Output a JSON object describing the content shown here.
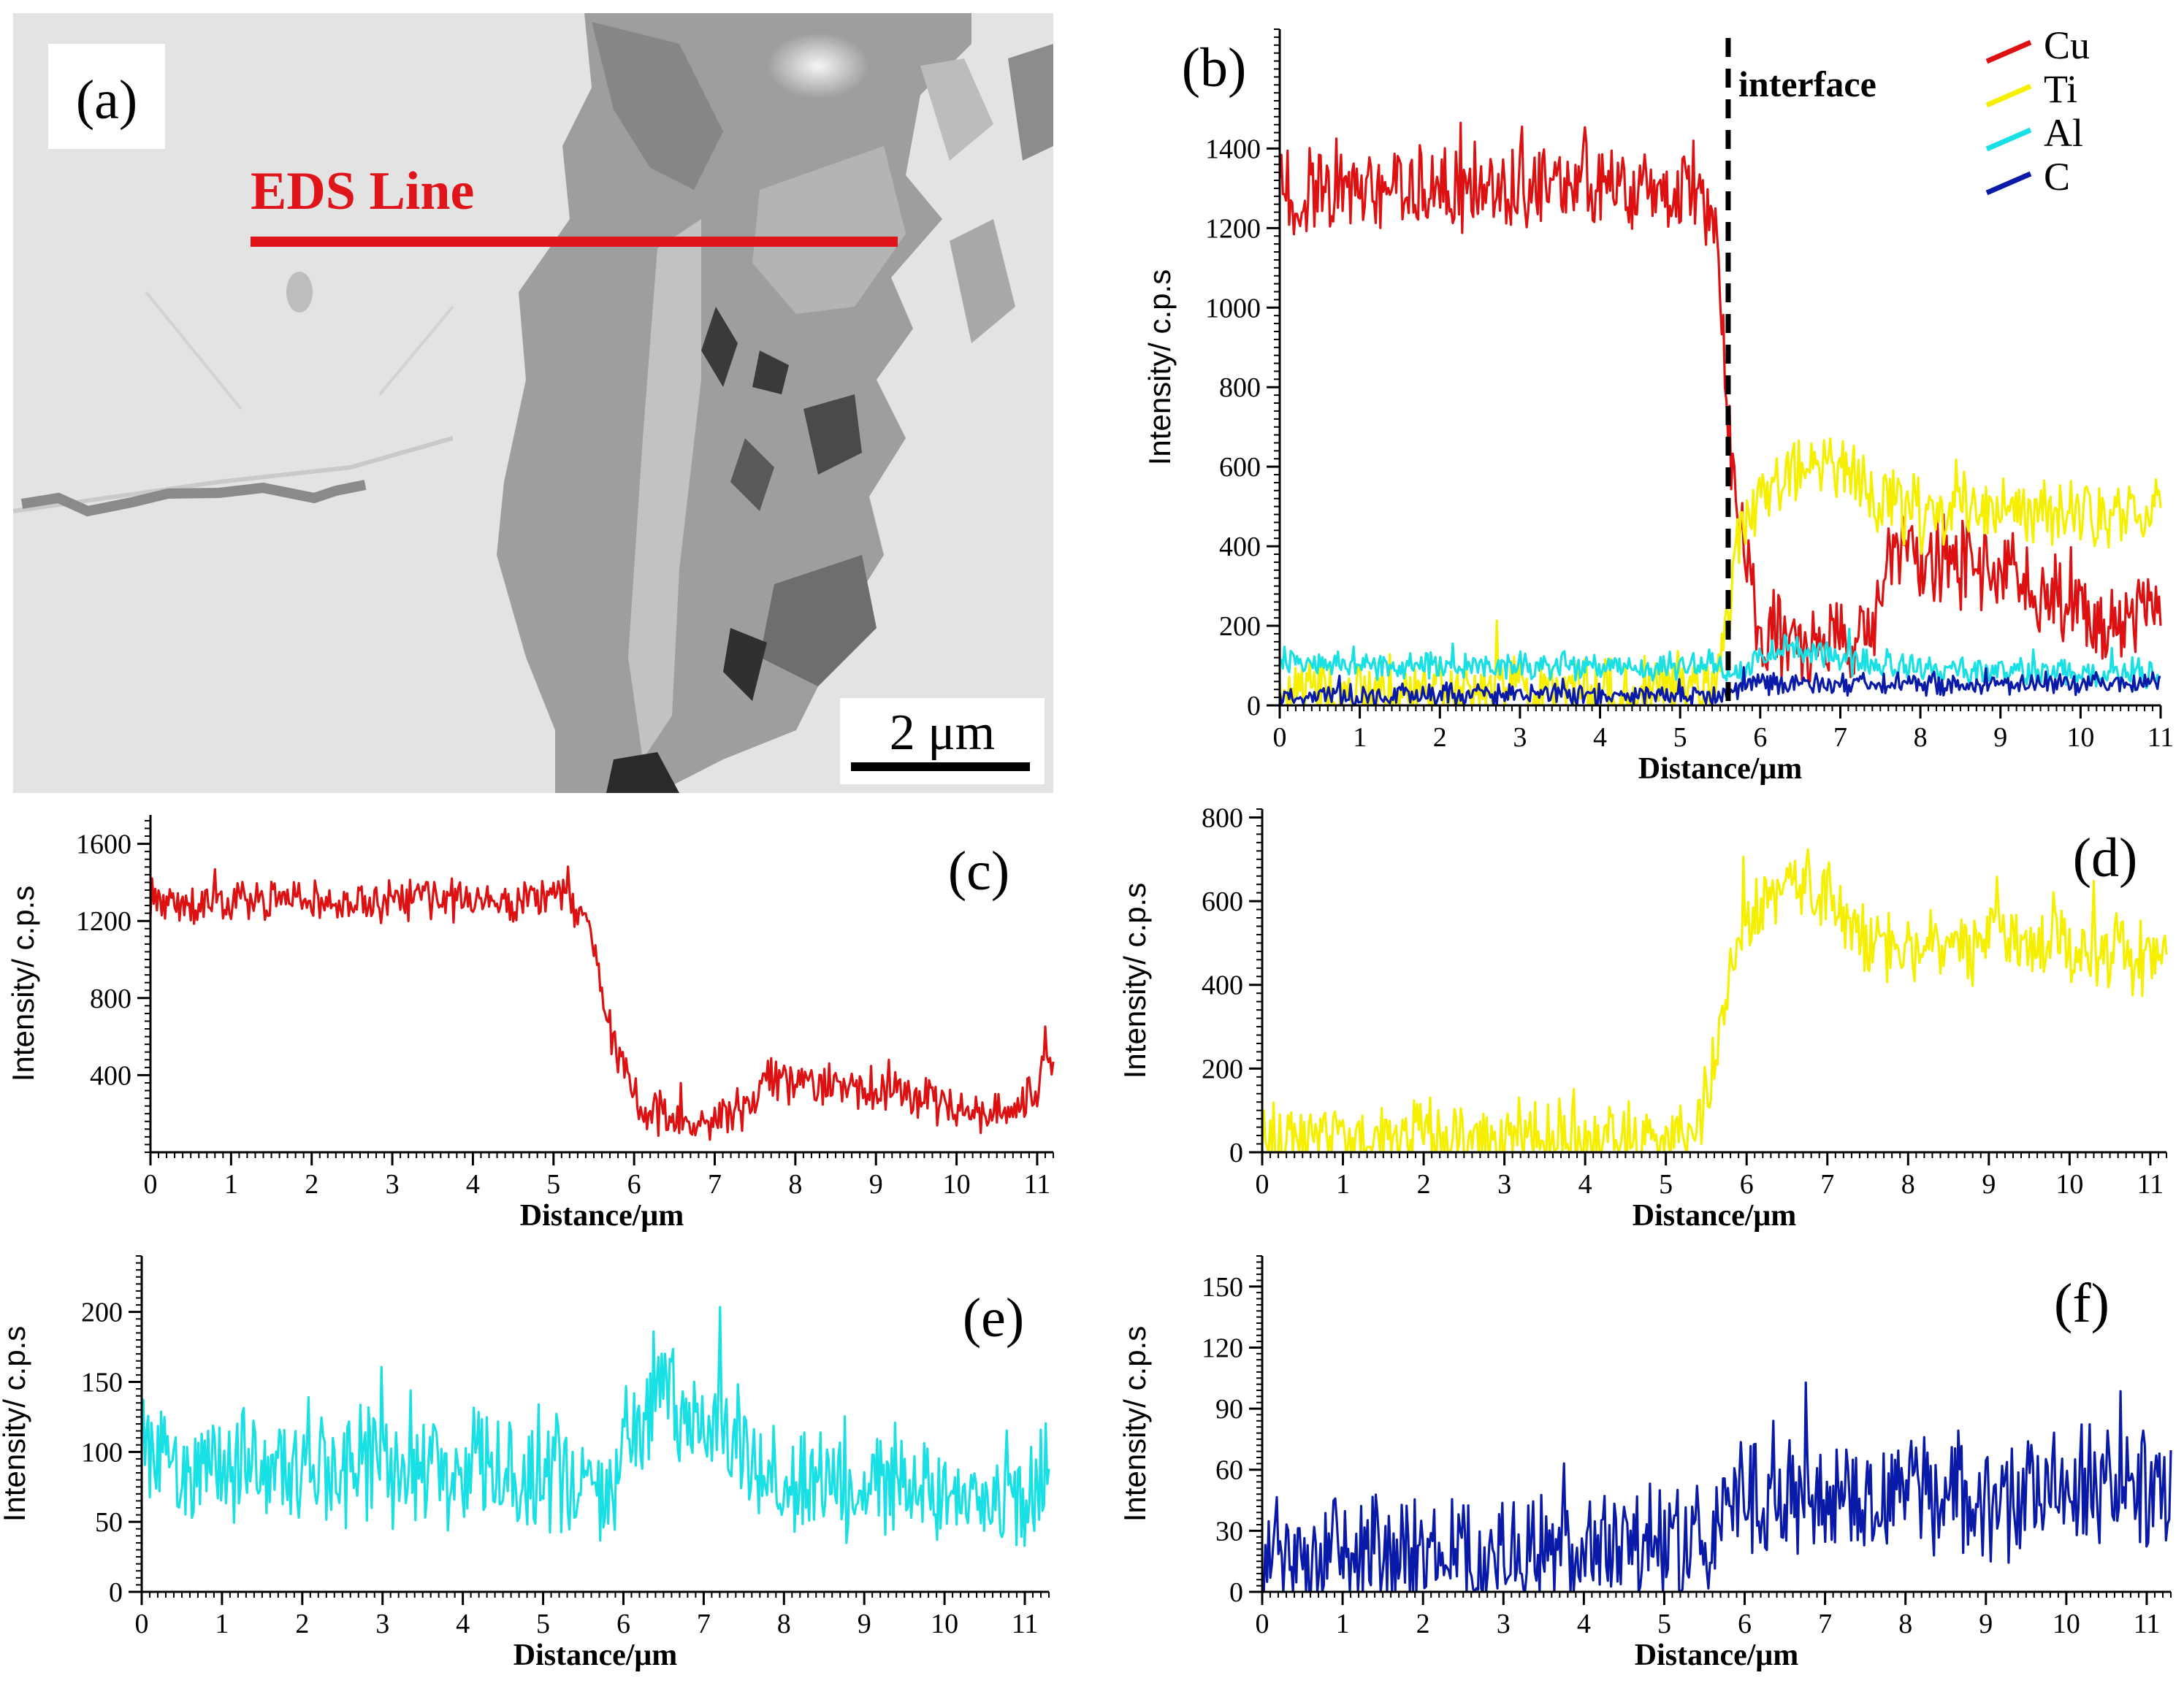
{
  "figure": {
    "panel_a": {
      "letter": "(a)",
      "eds_label": "EDS Line",
      "scale_bar_label": "2 μm",
      "line_color": "#e0151b"
    }
  },
  "chart_data": [
    {
      "id": "b",
      "letter": "(b)",
      "type": "line",
      "xlabel": "Distance/μm",
      "ylabel": "Intensity/ c.p.s",
      "xlim": [
        0,
        11
      ],
      "ylim": [
        0,
        1700
      ],
      "xticks": [
        0,
        1,
        2,
        3,
        4,
        5,
        6,
        7,
        8,
        9,
        10,
        11
      ],
      "yticks": [
        0,
        200,
        400,
        600,
        800,
        1000,
        1200,
        1400
      ],
      "interface_label": "interface",
      "interface_x": 5.6,
      "series": [
        {
          "name": "Cu",
          "color": "#dd1111",
          "profile": [
            [
              0,
              1300
            ],
            [
              5.2,
              1300
            ],
            [
              5.45,
              1200
            ],
            [
              5.6,
              700
            ],
            [
              5.75,
              450
            ],
            [
              6.0,
              200
            ],
            [
              6.6,
              130
            ],
            [
              7.4,
              200
            ],
            [
              7.6,
              380
            ],
            [
              9.0,
              330
            ],
            [
              9.6,
              280
            ],
            [
              10.3,
              180
            ],
            [
              10.8,
              230
            ],
            [
              11,
              300
            ]
          ],
          "noise": 110,
          "min": 60
        },
        {
          "name": "Ti",
          "color": "#f6f000",
          "profile": [
            [
              0,
              30
            ],
            [
              5.4,
              30
            ],
            [
              5.55,
              150
            ],
            [
              5.7,
              400
            ],
            [
              6.0,
              520
            ],
            [
              6.6,
              620
            ],
            [
              7.0,
              600
            ],
            [
              7.4,
              520
            ],
            [
              8.0,
              480
            ],
            [
              9.0,
              500
            ],
            [
              11,
              480
            ]
          ],
          "noise": 90,
          "min": 0
        },
        {
          "name": "Al",
          "color": "#18e0e4",
          "profile": [
            [
              0,
              100
            ],
            [
              5.5,
              95
            ],
            [
              5.7,
              70
            ],
            [
              6.0,
              120
            ],
            [
              6.5,
              150
            ],
            [
              7.2,
              110
            ],
            [
              8.0,
              90
            ],
            [
              11,
              80
            ]
          ],
          "noise": 35,
          "min": 10
        },
        {
          "name": "C",
          "color": "#0a1aa8",
          "profile": [
            [
              0,
              25
            ],
            [
              5.6,
              25
            ],
            [
              5.8,
              55
            ],
            [
              11,
              55
            ]
          ],
          "noise": 28,
          "min": 0
        }
      ]
    },
    {
      "id": "c",
      "letter": "(c)",
      "type": "line",
      "xlabel": "Distance/μm",
      "ylabel": "Intensity/ c.p.s",
      "xlim": [
        0,
        11.2
      ],
      "ylim": [
        0,
        1750
      ],
      "xticks": [
        0,
        1,
        2,
        3,
        4,
        5,
        6,
        7,
        8,
        9,
        10,
        11
      ],
      "yticks": [
        400,
        800,
        1200,
        1600
      ],
      "series": [
        {
          "name": "Cu",
          "color": "#dd1111",
          "profile": [
            [
              0,
              1300
            ],
            [
              5.2,
              1300
            ],
            [
              5.45,
              1200
            ],
            [
              5.65,
              700
            ],
            [
              5.85,
              450
            ],
            [
              6.1,
              220
            ],
            [
              6.7,
              150
            ],
            [
              7.4,
              220
            ],
            [
              7.6,
              380
            ],
            [
              9.0,
              330
            ],
            [
              9.6,
              280
            ],
            [
              10.3,
              170
            ],
            [
              10.9,
              260
            ],
            [
              11.2,
              520
            ]
          ],
          "noise": 110,
          "min": 60
        }
      ]
    },
    {
      "id": "d",
      "letter": "(d)",
      "type": "line",
      "xlabel": "Distance/μm",
      "ylabel": "Intensity/ c.p.s",
      "xlim": [
        0,
        11.2
      ],
      "ylim": [
        0,
        820
      ],
      "xticks": [
        0,
        1,
        2,
        3,
        4,
        5,
        6,
        7,
        8,
        9,
        10,
        11
      ],
      "yticks": [
        0,
        200,
        400,
        600,
        800
      ],
      "series": [
        {
          "name": "Ti",
          "color": "#f6f000",
          "profile": [
            [
              0,
              30
            ],
            [
              5.3,
              30
            ],
            [
              5.55,
              150
            ],
            [
              5.75,
              400
            ],
            [
              6.0,
              550
            ],
            [
              6.6,
              640
            ],
            [
              7.0,
              620
            ],
            [
              7.4,
              520
            ],
            [
              8.0,
              480
            ],
            [
              9.0,
              500
            ],
            [
              11.2,
              470
            ]
          ],
          "noise": 90,
          "min": 0
        }
      ]
    },
    {
      "id": "e",
      "letter": "(e)",
      "type": "line",
      "xlabel": "Distance/μm",
      "ylabel": "Intensity/ c.p.s",
      "xlim": [
        0,
        11.3
      ],
      "ylim": [
        0,
        240
      ],
      "xticks": [
        0,
        1,
        2,
        3,
        4,
        5,
        6,
        7,
        8,
        9,
        10,
        11
      ],
      "yticks": [
        0,
        50,
        100,
        150,
        200
      ],
      "series": [
        {
          "name": "Al",
          "color": "#18e0e4",
          "profile": [
            [
              0,
              90
            ],
            [
              5.5,
              85
            ],
            [
              5.8,
              65
            ],
            [
              6.0,
              110
            ],
            [
              6.5,
              140
            ],
            [
              7.2,
              110
            ],
            [
              8.0,
              80
            ],
            [
              11.3,
              75
            ]
          ],
          "noise": 42,
          "min": 10
        }
      ]
    },
    {
      "id": "f",
      "letter": "(f)",
      "type": "line",
      "xlabel": "Distance/μm",
      "ylabel": "Intensity/ c.p.s",
      "xlim": [
        0,
        11.3
      ],
      "ylim": [
        0,
        165
      ],
      "xticks": [
        0,
        1,
        2,
        3,
        4,
        5,
        6,
        7,
        8,
        9,
        10,
        11
      ],
      "yticks": [
        0,
        30,
        60,
        90,
        120,
        150
      ],
      "series": [
        {
          "name": "C",
          "color": "#0a1aa8",
          "profile": [
            [
              0,
              20
            ],
            [
              5.5,
              22
            ],
            [
              5.8,
              45
            ],
            [
              11.3,
              50
            ]
          ],
          "noise": 30,
          "min": 0
        }
      ]
    }
  ]
}
